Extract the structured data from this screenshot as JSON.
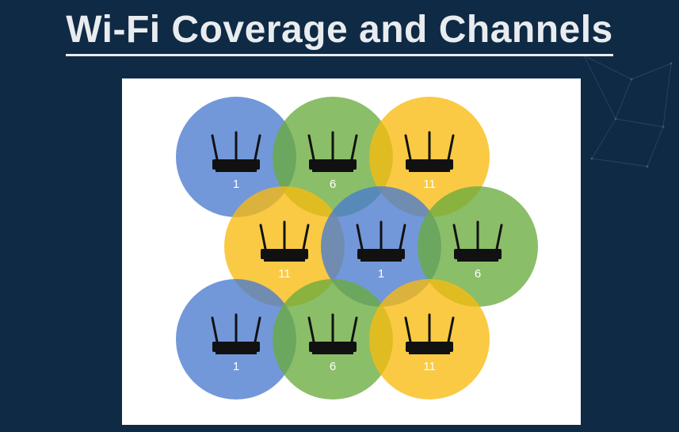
{
  "title": "Wi-Fi Coverage and Channels",
  "colors": {
    "background": "#0f2a45",
    "channel_1": "#4a7bd0",
    "channel_6": "#6aac3e",
    "channel_11": "#f8bb10",
    "router": "#111111",
    "label": "#ffffff"
  },
  "cells": [
    {
      "channel": "1",
      "label": "1"
    },
    {
      "channel": "6",
      "label": "6"
    },
    {
      "channel": "11",
      "label": "11"
    },
    {
      "channel": "11",
      "label": "11"
    },
    {
      "channel": "1",
      "label": "1"
    },
    {
      "channel": "6",
      "label": "6"
    },
    {
      "channel": "1",
      "label": "1"
    },
    {
      "channel": "6",
      "label": "6"
    },
    {
      "channel": "11",
      "label": "11"
    }
  ]
}
